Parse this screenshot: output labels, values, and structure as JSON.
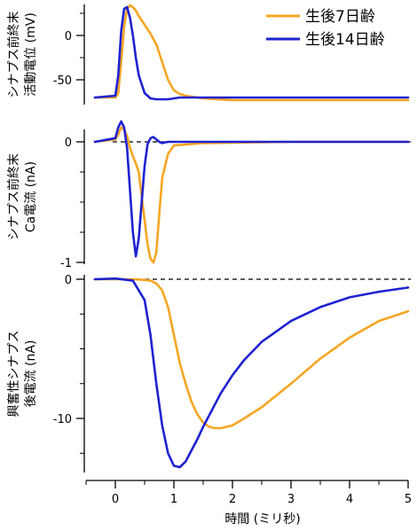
{
  "colors": {
    "p7": "#F5A623",
    "p14": "#1E22D0",
    "axis": "#000000"
  },
  "legend": [
    {
      "label": "生後7日齢",
      "color": "#F5A623"
    },
    {
      "label": "生後14日齢",
      "color": "#1E22D0"
    }
  ],
  "xaxis": {
    "label": "時間 (ミリ秒)",
    "range": [
      -0.5,
      5
    ],
    "ticks": [
      "0",
      "1",
      "2",
      "3",
      "4",
      "5"
    ]
  },
  "chart_data": [
    {
      "type": "line",
      "ylabel_line1": "シナプス前終末",
      "ylabel_line2": "活動電位 (mV)",
      "ylim": [
        -75,
        40
      ],
      "yticks": [
        "0",
        "-50"
      ],
      "x": [
        -0.35,
        0.0,
        0.05,
        0.1,
        0.15,
        0.2,
        0.25,
        0.3,
        0.35,
        0.4,
        0.5,
        0.6,
        0.7,
        0.8,
        0.9,
        1.0,
        1.1,
        1.2,
        1.5,
        2.0,
        3.0,
        4.0,
        5.0
      ],
      "series": [
        {
          "name": "生後7日齢",
          "values": [
            -70,
            -70,
            -65,
            -30,
            10,
            30,
            34,
            32,
            28,
            22,
            12,
            2,
            -10,
            -30,
            -50,
            -62,
            -66,
            -68,
            -71,
            -73,
            -73,
            -73,
            -73
          ]
        },
        {
          "name": "生後14日齢",
          "values": [
            -70,
            -68,
            -45,
            5,
            30,
            32,
            20,
            0,
            -25,
            -45,
            -65,
            -71,
            -72,
            -72,
            -72,
            -71,
            -70,
            -70,
            -70,
            -70,
            -70,
            -70,
            -70
          ]
        }
      ]
    },
    {
      "type": "line",
      "ylabel_line1": "シナプス前終末",
      "ylabel_line2": "Ca電流 (nA)",
      "ylim": [
        -1.05,
        0.2
      ],
      "yticks": [
        "0",
        "-1"
      ],
      "baseline": 0,
      "x": [
        -0.35,
        0.0,
        0.05,
        0.1,
        0.15,
        0.2,
        0.25,
        0.3,
        0.35,
        0.4,
        0.45,
        0.5,
        0.55,
        0.6,
        0.65,
        0.7,
        0.75,
        0.8,
        0.9,
        1.0,
        1.5,
        3.0,
        5.0
      ],
      "series": [
        {
          "name": "生後7日齢",
          "values": [
            0.0,
            0.02,
            0.06,
            0.12,
            0.1,
            0.05,
            -0.05,
            -0.12,
            -0.18,
            -0.25,
            -0.45,
            -0.65,
            -0.85,
            -0.97,
            -1.0,
            -0.92,
            -0.6,
            -0.3,
            -0.1,
            -0.03,
            -0.01,
            0.0,
            0.0
          ]
        },
        {
          "name": "生後14日齢",
          "values": [
            0.0,
            0.03,
            0.12,
            0.17,
            0.12,
            -0.05,
            -0.4,
            -0.75,
            -0.95,
            -0.8,
            -0.5,
            -0.2,
            -0.02,
            0.03,
            0.04,
            0.02,
            0.0,
            -0.01,
            0.0,
            0.0,
            0.0,
            0.0,
            0.0
          ]
        }
      ]
    },
    {
      "type": "line",
      "ylabel_line1": "興奮性シナプス",
      "ylabel_line2": "後電流 (nA)",
      "ylim": [
        -13.5,
        0.2
      ],
      "yticks": [
        "0",
        "-10"
      ],
      "baseline": 0,
      "x": [
        -0.35,
        0.0,
        0.3,
        0.5,
        0.6,
        0.7,
        0.8,
        0.9,
        1.0,
        1.1,
        1.2,
        1.3,
        1.4,
        1.5,
        1.6,
        1.7,
        1.8,
        2.0,
        2.2,
        2.5,
        3.0,
        3.5,
        4.0,
        4.5,
        5.0
      ],
      "series": [
        {
          "name": "生後7日齢",
          "values": [
            0.0,
            0.0,
            0.0,
            -0.05,
            -0.1,
            -0.3,
            -0.8,
            -2.0,
            -4.0,
            -6.0,
            -7.5,
            -8.8,
            -9.7,
            -10.3,
            -10.6,
            -10.7,
            -10.7,
            -10.5,
            -10.0,
            -9.2,
            -7.5,
            -5.7,
            -4.2,
            -3.0,
            -2.3
          ]
        },
        {
          "name": "生後14日齢",
          "values": [
            0.0,
            0.05,
            -0.1,
            -1.5,
            -4.0,
            -7.5,
            -10.5,
            -12.5,
            -13.4,
            -13.5,
            -13.1,
            -12.3,
            -11.5,
            -10.6,
            -9.8,
            -9.0,
            -8.2,
            -6.9,
            -5.8,
            -4.5,
            -3.0,
            -2.0,
            -1.3,
            -0.9,
            -0.6
          ]
        }
      ]
    }
  ]
}
